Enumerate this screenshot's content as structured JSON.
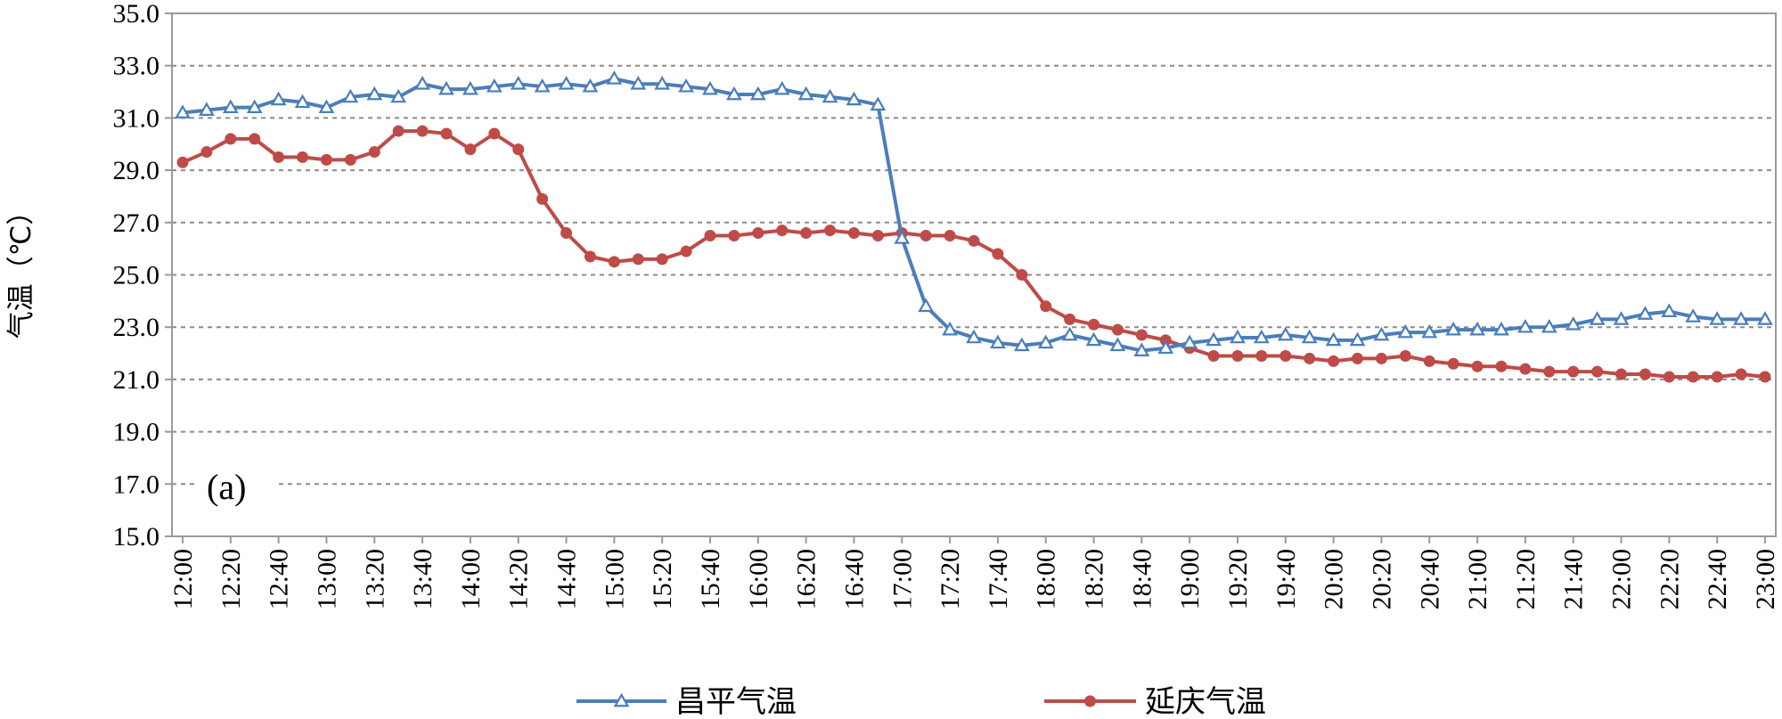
{
  "chart_data": {
    "type": "line",
    "title": "",
    "xlabel": "",
    "ylabel": "气温（℃）",
    "panel_label": "(a)",
    "ylim": [
      15.0,
      35.0
    ],
    "yticks": [
      "15.0",
      "17.0",
      "19.0",
      "21.0",
      "23.0",
      "25.0",
      "27.0",
      "29.0",
      "31.0",
      "33.0",
      "35.0"
    ],
    "ygrid": "dashed",
    "legend_position": "bottom",
    "categories": [
      "12:00",
      "12:10",
      "12:20",
      "12:30",
      "12:40",
      "12:50",
      "13:00",
      "13:10",
      "13:20",
      "13:30",
      "13:40",
      "13:50",
      "14:00",
      "14:10",
      "14:20",
      "14:30",
      "14:40",
      "14:50",
      "15:00",
      "15:10",
      "15:20",
      "15:30",
      "15:40",
      "15:50",
      "16:00",
      "16:10",
      "16:20",
      "16:30",
      "16:40",
      "16:50",
      "17:00",
      "17:10",
      "17:20",
      "17:30",
      "17:40",
      "17:50",
      "18:00",
      "18:10",
      "18:20",
      "18:30",
      "18:40",
      "18:50",
      "19:00",
      "19:10",
      "19:20",
      "19:30",
      "19:40",
      "19:50",
      "20:00",
      "20:10",
      "20:20",
      "20:30",
      "20:40",
      "20:50",
      "21:00",
      "21:10",
      "21:20",
      "21:30",
      "21:40",
      "21:50",
      "22:00",
      "22:10",
      "22:20",
      "22:30",
      "22:40",
      "22:50",
      "23:00"
    ],
    "xticks": [
      "12:00",
      "12:20",
      "12:40",
      "13:00",
      "13:20",
      "13:40",
      "14:00",
      "14:20",
      "14:40",
      "15:00",
      "15:20",
      "15:40",
      "16:00",
      "16:20",
      "16:40",
      "17:00",
      "17:20",
      "17:40",
      "18:00",
      "18:20",
      "18:40",
      "19:00",
      "19:20",
      "19:40",
      "20:00",
      "20:20",
      "20:40",
      "21:00",
      "21:20",
      "21:40",
      "22:00",
      "22:20",
      "22:40",
      "23:00"
    ],
    "series": [
      {
        "name": "昌平气温",
        "color": "#4a7ebb",
        "marker": "triangle",
        "values": [
          31.2,
          31.3,
          31.4,
          31.4,
          31.7,
          31.6,
          31.4,
          31.8,
          31.9,
          31.8,
          32.3,
          32.1,
          32.1,
          32.2,
          32.3,
          32.2,
          32.3,
          32.2,
          32.5,
          32.3,
          32.3,
          32.2,
          32.1,
          31.9,
          31.9,
          32.1,
          31.9,
          31.8,
          31.7,
          31.5,
          26.4,
          23.8,
          22.9,
          22.6,
          22.4,
          22.3,
          22.4,
          22.7,
          22.5,
          22.3,
          22.1,
          22.2,
          22.4,
          22.5,
          22.6,
          22.6,
          22.7,
          22.6,
          22.5,
          22.5,
          22.7,
          22.8,
          22.8,
          22.9,
          22.9,
          22.9,
          23.0,
          23.0,
          23.1,
          23.3,
          23.3,
          23.5,
          23.6,
          23.4,
          23.3,
          23.3,
          23.3
        ]
      },
      {
        "name": "延庆气温",
        "color": "#be4b48",
        "marker": "circle",
        "values": [
          29.3,
          29.7,
          30.2,
          30.2,
          29.5,
          29.5,
          29.4,
          29.4,
          29.7,
          30.5,
          30.5,
          30.4,
          29.8,
          30.4,
          29.8,
          27.9,
          26.6,
          25.7,
          25.5,
          25.6,
          25.6,
          25.9,
          26.5,
          26.5,
          26.6,
          26.7,
          26.6,
          26.7,
          26.6,
          26.5,
          26.6,
          26.5,
          26.5,
          26.3,
          25.8,
          25.0,
          23.8,
          23.3,
          23.1,
          22.9,
          22.7,
          22.5,
          22.2,
          21.9,
          21.9,
          21.9,
          21.9,
          21.8,
          21.7,
          21.8,
          21.8,
          21.9,
          21.7,
          21.6,
          21.5,
          21.5,
          21.4,
          21.3,
          21.3,
          21.3,
          21.2,
          21.2,
          21.1,
          21.1,
          21.1,
          21.2,
          21.1
        ]
      }
    ]
  }
}
